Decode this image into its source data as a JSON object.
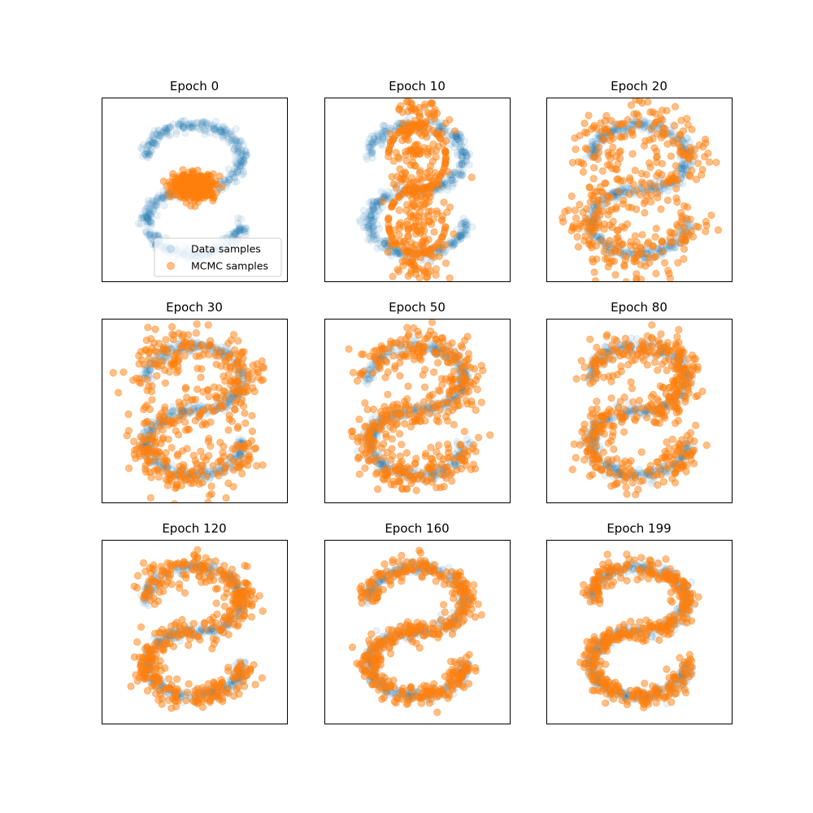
{
  "colors": {
    "data": "#1f77b4",
    "mcmc": "#ff7f0e"
  },
  "legend": {
    "location": "lower right (first panel)",
    "entries": [
      "Data samples",
      "MCMC samples"
    ]
  },
  "chart_data": [
    {
      "type": "scatter",
      "title": "Epoch 0",
      "xlim": [
        -3,
        3
      ],
      "ylim": [
        -3,
        3
      ],
      "axes_ticks": false,
      "series": [
        {
          "name": "Data samples",
          "kind": "s-curve",
          "n": 600
        },
        {
          "name": "MCMC samples",
          "kind": "blob",
          "center": [
            0,
            0.1
          ],
          "spread": [
            0.55,
            0.32
          ],
          "n": 450
        }
      ]
    },
    {
      "type": "scatter",
      "title": "Epoch 10",
      "xlim": [
        -3,
        3
      ],
      "ylim": [
        -3,
        3
      ],
      "axes_ticks": false,
      "series": [
        {
          "name": "Data samples",
          "kind": "s-curve",
          "n": 600
        },
        {
          "name": "MCMC samples",
          "kind": "column",
          "center": [
            0,
            0
          ],
          "spread": [
            0.75,
            2.9
          ],
          "n": 450
        }
      ]
    },
    {
      "type": "scatter",
      "title": "Epoch 20",
      "xlim": [
        -3,
        3
      ],
      "ylim": [
        -3,
        3
      ],
      "axes_ticks": false,
      "series": [
        {
          "name": "Data samples",
          "kind": "s-curve",
          "n": 600
        },
        {
          "name": "MCMC samples",
          "kind": "noisy-s",
          "noise": 0.45,
          "n": 400
        }
      ]
    },
    {
      "type": "scatter",
      "title": "Epoch 30",
      "xlim": [
        -3,
        3
      ],
      "ylim": [
        -3,
        3
      ],
      "axes_ticks": false,
      "series": [
        {
          "name": "Data samples",
          "kind": "s-curve",
          "n": 600
        },
        {
          "name": "MCMC samples",
          "kind": "noisy-s",
          "noise": 0.4,
          "n": 450
        }
      ]
    },
    {
      "type": "scatter",
      "title": "Epoch 50",
      "xlim": [
        -3,
        3
      ],
      "ylim": [
        -3,
        3
      ],
      "axes_ticks": false,
      "series": [
        {
          "name": "Data samples",
          "kind": "s-curve",
          "n": 600
        },
        {
          "name": "MCMC samples",
          "kind": "noisy-s",
          "noise": 0.35,
          "n": 450
        }
      ]
    },
    {
      "type": "scatter",
      "title": "Epoch 80",
      "xlim": [
        -3,
        3
      ],
      "ylim": [
        -3,
        3
      ],
      "axes_ticks": false,
      "series": [
        {
          "name": "Data samples",
          "kind": "s-curve",
          "n": 600
        },
        {
          "name": "MCMC samples",
          "kind": "noisy-s",
          "noise": 0.28,
          "n": 450
        }
      ]
    },
    {
      "type": "scatter",
      "title": "Epoch 120",
      "xlim": [
        -3,
        3
      ],
      "ylim": [
        -3,
        3
      ],
      "axes_ticks": false,
      "series": [
        {
          "name": "Data samples",
          "kind": "s-curve",
          "n": 600
        },
        {
          "name": "MCMC samples",
          "kind": "noisy-s",
          "noise": 0.24,
          "n": 450
        }
      ]
    },
    {
      "type": "scatter",
      "title": "Epoch 160",
      "xlim": [
        -3,
        3
      ],
      "ylim": [
        -3,
        3
      ],
      "axes_ticks": false,
      "series": [
        {
          "name": "Data samples",
          "kind": "s-curve",
          "n": 600
        },
        {
          "name": "MCMC samples",
          "kind": "noisy-s",
          "noise": 0.2,
          "n": 450
        }
      ]
    },
    {
      "type": "scatter",
      "title": "Epoch 199",
      "xlim": [
        -3,
        3
      ],
      "ylim": [
        -3,
        3
      ],
      "axes_ticks": false,
      "series": [
        {
          "name": "Data samples",
          "kind": "s-curve",
          "n": 600
        },
        {
          "name": "MCMC samples",
          "kind": "noisy-s",
          "noise": 0.18,
          "n": 450
        }
      ]
    }
  ]
}
